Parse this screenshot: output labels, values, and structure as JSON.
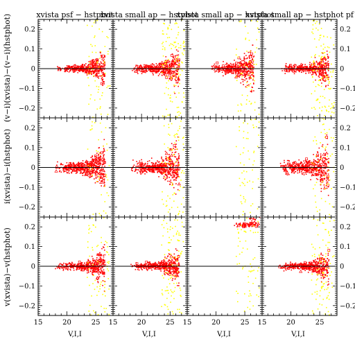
{
  "figure": {
    "panel_titles": [
      "xvista psf − hstphot",
      "xvista small ap − hstphot",
      "xvista small ap − hstphot",
      "xvista small ap − hstphot pf"
    ],
    "row_ylabels": [
      "(v−i)(xvista)−(v−i)(hstphot)",
      "i(xvista)−i(hstphot)",
      "v(xvista)−v(hstphot)"
    ],
    "xlabel": "V,I,I",
    "xticks": [
      "15",
      "20",
      "25"
    ],
    "xticks_last": [
      "15",
      "20",
      "25",
      "15"
    ],
    "yticks": [
      "0.2",
      "0.1",
      "0",
      "−0.1",
      "−0.2"
    ]
  },
  "chart_data": {
    "type": "scatter",
    "layout": "3x4 panel grid",
    "xlim": [
      15,
      28
    ],
    "ylim": [
      -0.25,
      0.25
    ],
    "zero_line": 0,
    "colors": {
      "primary": "#ff0000",
      "secondary": "#ffff00",
      "axis": "#000000"
    },
    "series": [
      {
        "name": "",
        "color": "#ff0000",
        "marker": "dot / open square / triangle"
      },
      {
        "name": "",
        "color": "#ffff00",
        "marker": "dot"
      }
    ],
    "panels": [
      {
        "row": 0,
        "col": 0,
        "bulk_x": [
          18,
          26
        ],
        "spread": 0.03,
        "fan_y": [
          -0.25,
          0.15
        ],
        "red_points": 420,
        "yellow_points": 60
      },
      {
        "row": 0,
        "col": 1,
        "bulk_x": [
          18,
          26
        ],
        "spread": 0.035,
        "fan_y": [
          -0.25,
          0.2
        ],
        "red_points": 420,
        "yellow_points": 120
      },
      {
        "row": 0,
        "col": 2,
        "bulk_x": [
          19,
          26
        ],
        "spread": 0.04,
        "fan_y": [
          -0.25,
          0.25
        ],
        "red_points": 420,
        "yellow_points": 60
      },
      {
        "row": 0,
        "col": 3,
        "bulk_x": [
          18,
          26
        ],
        "spread": 0.035,
        "fan_y": [
          -0.25,
          0.25
        ],
        "red_points": 380,
        "yellow_points": 120
      },
      {
        "row": 1,
        "col": 0,
        "bulk_x": [
          18,
          26
        ],
        "spread": 0.04,
        "fan_y": [
          -0.25,
          0.25
        ],
        "red_points": 500,
        "yellow_points": 40
      },
      {
        "row": 1,
        "col": 1,
        "bulk_x": [
          18,
          26
        ],
        "spread": 0.05,
        "fan_y": [
          -0.25,
          0.25
        ],
        "red_points": 480,
        "yellow_points": 80
      },
      {
        "row": 1,
        "col": 2,
        "bulk_x": [
          24,
          27
        ],
        "spread": 0.2,
        "fan_y": [
          -0.25,
          0.25
        ],
        "red_points": 0,
        "yellow_points": 60
      },
      {
        "row": 1,
        "col": 3,
        "bulk_x": [
          18,
          26
        ],
        "spread": 0.05,
        "fan_y": [
          -0.25,
          0.25
        ],
        "red_points": 480,
        "yellow_points": 60
      },
      {
        "row": 2,
        "col": 0,
        "bulk_x": [
          18,
          26
        ],
        "spread": 0.03,
        "fan_y": [
          -0.25,
          0.25
        ],
        "red_points": 420,
        "yellow_points": 70
      },
      {
        "row": 2,
        "col": 1,
        "bulk_x": [
          18,
          26
        ],
        "spread": 0.03,
        "fan_y": [
          -0.25,
          0.25
        ],
        "red_points": 420,
        "yellow_points": 100
      },
      {
        "row": 2,
        "col": 2,
        "bulk_x": [
          23,
          27
        ],
        "spread": 0.2,
        "fan_y": [
          0.2,
          0.25
        ],
        "red_points": 80,
        "yellow_points": 60
      },
      {
        "row": 2,
        "col": 3,
        "bulk_x": [
          18,
          26
        ],
        "spread": 0.03,
        "fan_y": [
          -0.25,
          0.25
        ],
        "red_points": 420,
        "yellow_points": 100
      }
    ]
  }
}
